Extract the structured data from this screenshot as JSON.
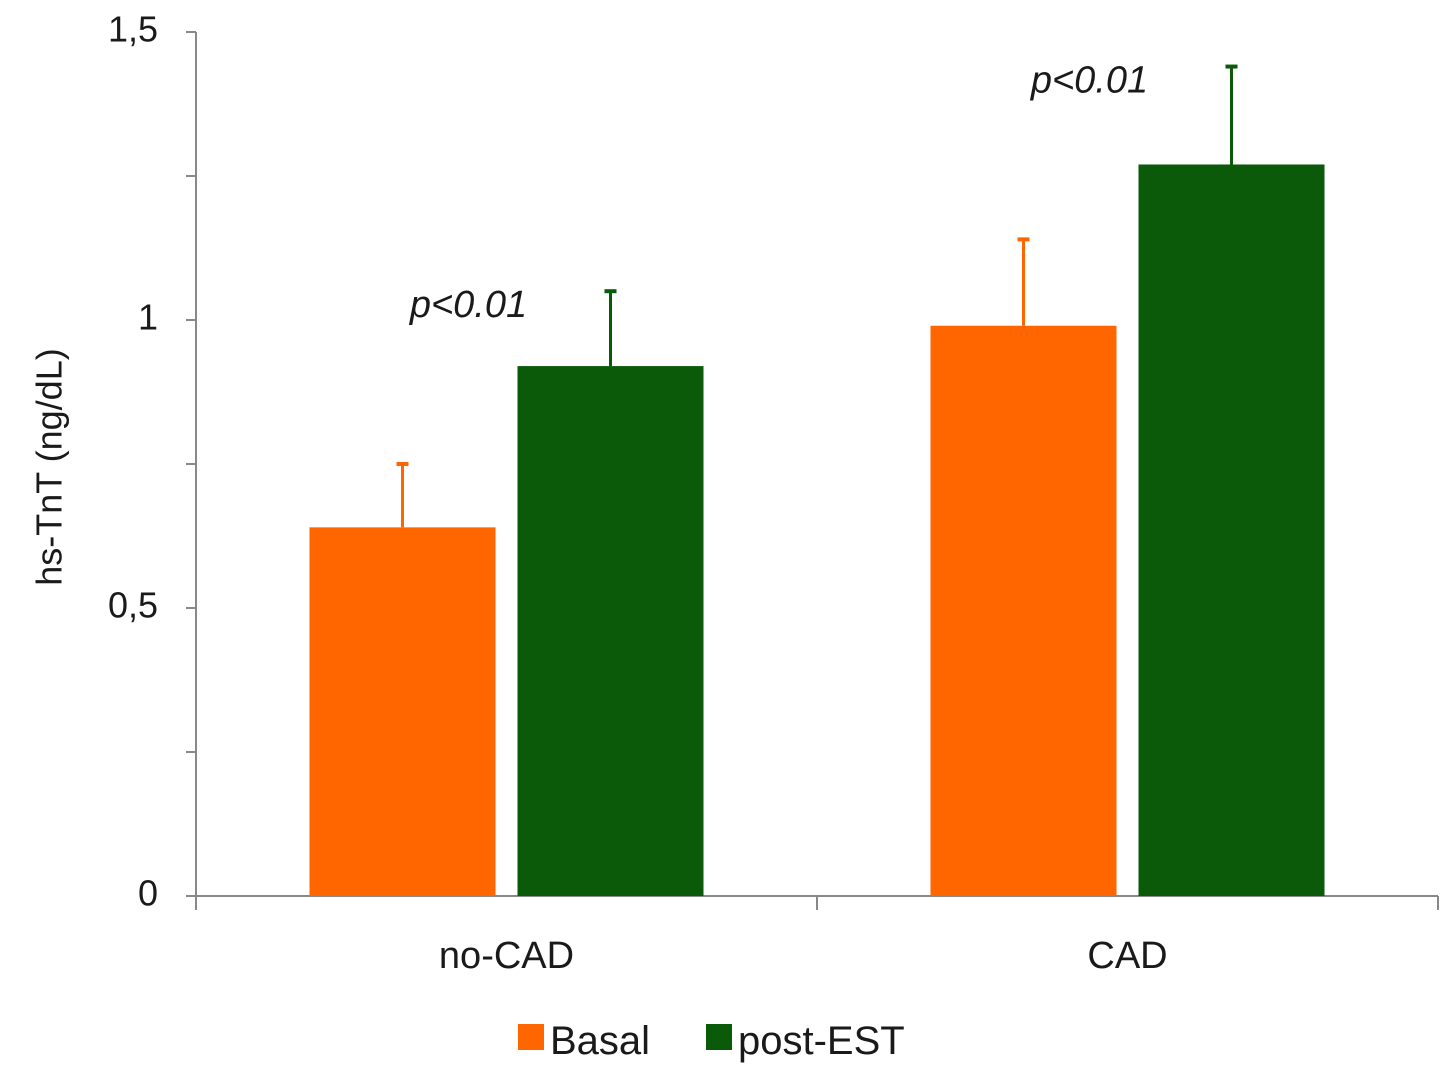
{
  "chart_data": {
    "type": "bar",
    "categories": [
      "no-CAD",
      "CAD"
    ],
    "series": [
      {
        "name": "Basal",
        "color": "#ff6600",
        "values": [
          0.64,
          0.99
        ],
        "errors": [
          0.11,
          0.15
        ]
      },
      {
        "name": "post-EST",
        "color": "#0a5a0a",
        "values": [
          0.92,
          1.27
        ],
        "errors": [
          0.13,
          0.17
        ]
      }
    ],
    "annotations": [
      {
        "category": "no-CAD",
        "text": "p<0.01"
      },
      {
        "category": "CAD",
        "text": "p<0.01"
      }
    ],
    "title": "",
    "xlabel": "",
    "ylabel": "hs-TnT (ng/dL)",
    "ylim": [
      0,
      1.5
    ],
    "yticks": [
      0,
      0.25,
      0.5,
      0.75,
      1,
      1.25,
      1.5
    ],
    "ytick_labels": [
      "0",
      "",
      "0,5",
      "",
      "1",
      "",
      "1,5"
    ],
    "grid": false,
    "legend_position": "bottom"
  }
}
